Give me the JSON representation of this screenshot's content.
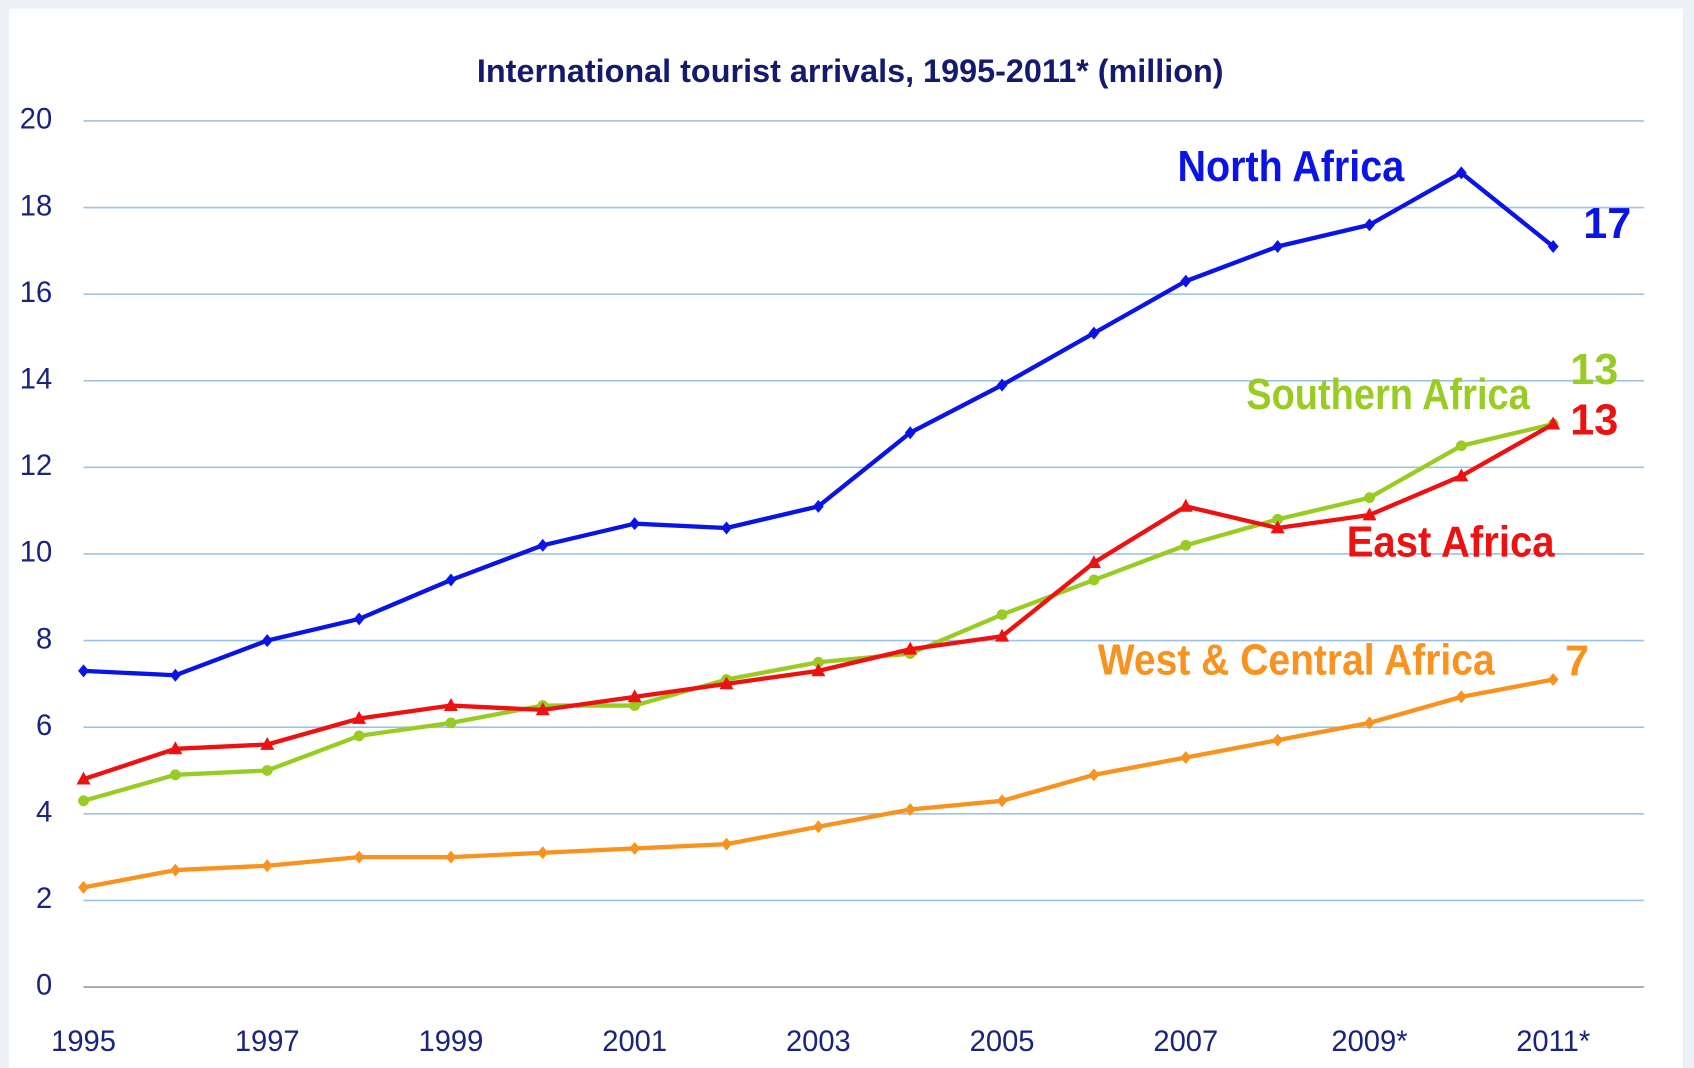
{
  "chart_data": {
    "type": "line",
    "title": "International tourist arrivals, 1995-2011* (million)",
    "categories": [
      "1995",
      null,
      "1997",
      null,
      "1999",
      null,
      "2001",
      null,
      "2003",
      null,
      "2005",
      null,
      "2007",
      null,
      "2009*",
      null,
      "2011*"
    ],
    "series": [
      {
        "name": "North Africa",
        "color": "#0a14e6",
        "marker": "diamond",
        "values": [
          7.3,
          7.2,
          8.0,
          8.5,
          9.4,
          10.2,
          10.7,
          10.6,
          11.1,
          12.8,
          13.9,
          15.1,
          16.3,
          17.1,
          17.6,
          18.8,
          17.1
        ],
        "value_labels": [
          null,
          null,
          null,
          null,
          null,
          null,
          null,
          null,
          null,
          null,
          null,
          null,
          null,
          null,
          null,
          null,
          "17"
        ]
      },
      {
        "name": "Southern Africa",
        "color": "#99cc22",
        "marker": "circle",
        "values": [
          4.3,
          4.9,
          5.0,
          5.8,
          6.1,
          6.5,
          6.5,
          7.1,
          7.5,
          7.7,
          8.6,
          9.4,
          10.2,
          10.8,
          11.3,
          12.5,
          13.0
        ],
        "value_labels": [
          null,
          null,
          null,
          null,
          null,
          null,
          null,
          null,
          null,
          null,
          null,
          null,
          null,
          null,
          null,
          null,
          "13"
        ]
      },
      {
        "name": "East Africa",
        "color": "#ee1111",
        "marker": "triangle",
        "values": [
          4.8,
          5.5,
          5.6,
          6.2,
          6.5,
          6.4,
          6.7,
          7.0,
          7.3,
          7.8,
          8.1,
          9.8,
          11.1,
          10.6,
          10.9,
          11.8,
          13.0
        ],
        "value_labels": [
          null,
          null,
          null,
          null,
          null,
          null,
          null,
          null,
          null,
          null,
          null,
          null,
          null,
          null,
          null,
          null,
          "13"
        ]
      },
      {
        "name": "West & Central Africa",
        "color": "#f7931e",
        "marker": "diamond",
        "values": [
          2.3,
          2.7,
          2.8,
          3.0,
          3.0,
          3.1,
          3.2,
          3.3,
          3.7,
          4.1,
          4.3,
          4.9,
          5.3,
          5.7,
          6.1,
          6.7,
          7.1
        ],
        "value_labels": [
          null,
          null,
          null,
          null,
          null,
          null,
          null,
          null,
          null,
          null,
          null,
          null,
          null,
          null,
          null,
          null,
          "7"
        ]
      }
    ],
    "ylim": [
      0,
      20
    ],
    "yticks": [
      0,
      2,
      4,
      6,
      8,
      10,
      12,
      14,
      16,
      18,
      20
    ],
    "grid": true
  }
}
